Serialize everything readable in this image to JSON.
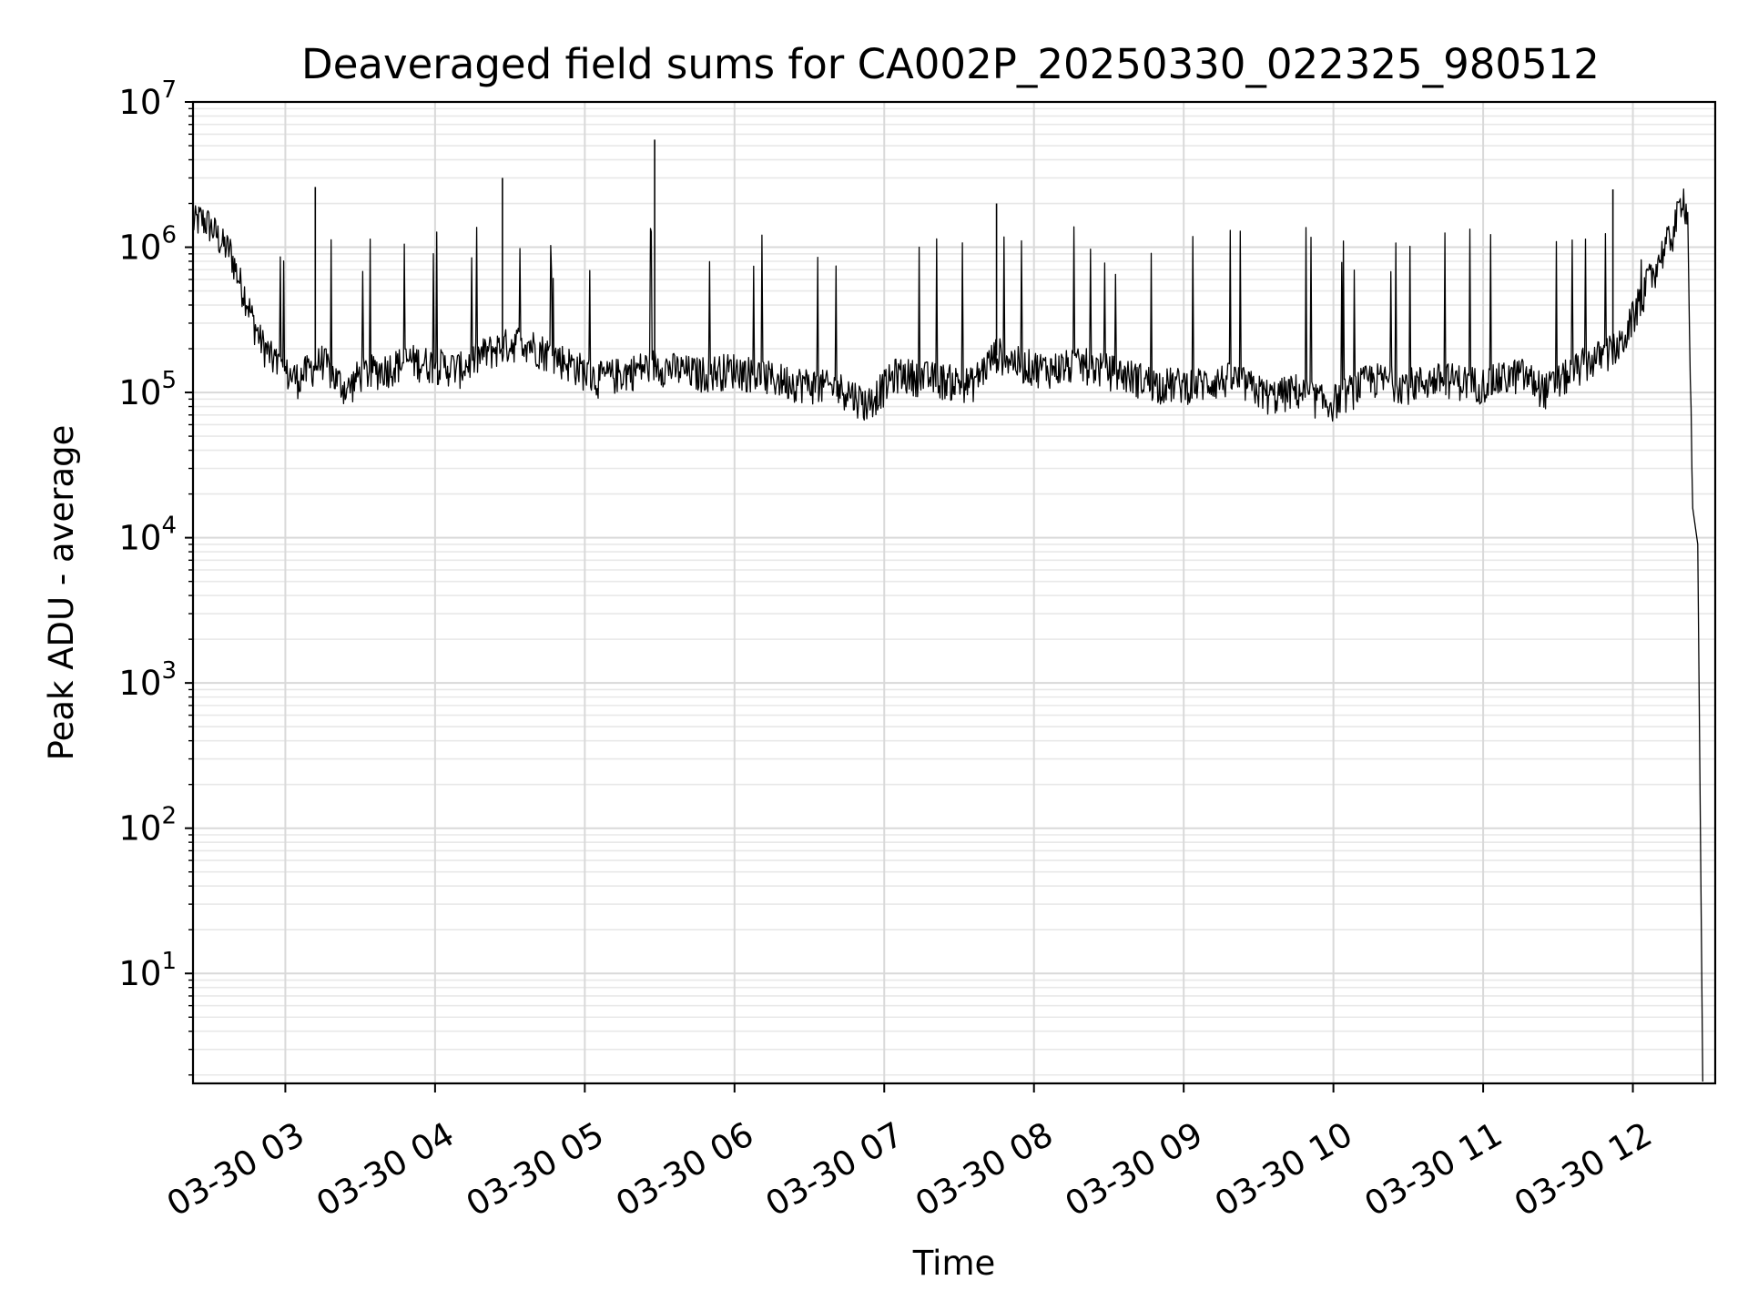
{
  "chart_data": {
    "type": "line",
    "title": "Deaveraged field sums for CA002P_20250330_022325_980512",
    "xlabel": "Time",
    "ylabel": "Peak ADU - average",
    "yscale": "log",
    "ylim": [
      1.75,
      10000000
    ],
    "xlim": [
      "2025-03-30 02:23",
      "2025-03-30 12:33"
    ],
    "grid": true,
    "line_color": "#000000",
    "x_ticks": [
      {
        "value": "2025-03-30 03:00",
        "label": "03-30 03"
      },
      {
        "value": "2025-03-30 04:00",
        "label": "03-30 04"
      },
      {
        "value": "2025-03-30 05:00",
        "label": "03-30 05"
      },
      {
        "value": "2025-03-30 06:00",
        "label": "03-30 06"
      },
      {
        "value": "2025-03-30 07:00",
        "label": "03-30 07"
      },
      {
        "value": "2025-03-30 08:00",
        "label": "03-30 08"
      },
      {
        "value": "2025-03-30 09:00",
        "label": "03-30 09"
      },
      {
        "value": "2025-03-30 10:00",
        "label": "03-30 10"
      },
      {
        "value": "2025-03-30 11:00",
        "label": "03-30 11"
      },
      {
        "value": "2025-03-30 12:00",
        "label": "03-30 12"
      }
    ],
    "y_ticks": [
      {
        "value": 10,
        "base": "10",
        "exp": "1"
      },
      {
        "value": 100,
        "base": "10",
        "exp": "2"
      },
      {
        "value": 1000,
        "base": "10",
        "exp": "3"
      },
      {
        "value": 10000,
        "base": "10",
        "exp": "4"
      },
      {
        "value": 100000,
        "base": "10",
        "exp": "5"
      },
      {
        "value": 1000000,
        "base": "10",
        "exp": "6"
      },
      {
        "value": 10000000,
        "base": "10",
        "exp": "7"
      }
    ],
    "series": [
      {
        "x": [
          "2025-03-30 02:23",
          "2025-03-30 02:26",
          "2025-03-30 02:29",
          "2025-03-30 02:32",
          "2025-03-30 02:35",
          "2025-03-30 02:38",
          "2025-03-30 02:41",
          "2025-03-30 02:44",
          "2025-03-30 02:47",
          "2025-03-30 02:50",
          "2025-03-30 02:55",
          "2025-03-30 03:00",
          "2025-03-30 03:05",
          "2025-03-30 03:10",
          "2025-03-30 03:15",
          "2025-03-30 03:20",
          "2025-03-30 03:25",
          "2025-03-30 03:30",
          "2025-03-30 03:40",
          "2025-03-30 03:50",
          "2025-03-30 04:00",
          "2025-03-30 04:10",
          "2025-03-30 04:20",
          "2025-03-30 04:27",
          "2025-03-30 04:35",
          "2025-03-30 04:45",
          "2025-03-30 04:55",
          "2025-03-30 05:05",
          "2025-03-30 05:15",
          "2025-03-30 05:28",
          "2025-03-30 05:35",
          "2025-03-30 05:45",
          "2025-03-30 06:00",
          "2025-03-30 06:15",
          "2025-03-30 06:30",
          "2025-03-30 06:45",
          "2025-03-30 06:53",
          "2025-03-30 07:05",
          "2025-03-30 07:20",
          "2025-03-30 07:35",
          "2025-03-30 07:45",
          "2025-03-30 07:55",
          "2025-03-30 08:05",
          "2025-03-30 08:20",
          "2025-03-30 08:35",
          "2025-03-30 08:50",
          "2025-03-30 09:05",
          "2025-03-30 09:20",
          "2025-03-30 09:35",
          "2025-03-30 09:45",
          "2025-03-30 09:58",
          "2025-03-30 10:15",
          "2025-03-30 10:30",
          "2025-03-30 10:45",
          "2025-03-30 11:00",
          "2025-03-30 11:15",
          "2025-03-30 11:25",
          "2025-03-30 11:40",
          "2025-03-30 11:55",
          "2025-03-30 12:05",
          "2025-03-30 12:12",
          "2025-03-30 12:16",
          "2025-03-30 12:18",
          "2025-03-30 12:20",
          "2025-03-30 12:22",
          "2025-03-30 12:24",
          "2025-03-30 12:26",
          "2025-03-30 12:27",
          "2025-03-30 12:28"
        ],
        "y": [
          1400000,
          1500000,
          1400000,
          1200000,
          1000000,
          900000,
          600000,
          450000,
          300000,
          220000,
          160000,
          130000,
          120000,
          140000,
          160000,
          120000,
          100000,
          130000,
          140000,
          160000,
          150000,
          140000,
          180000,
          200000,
          220000,
          180000,
          150000,
          120000,
          130000,
          150000,
          140000,
          130000,
          140000,
          120000,
          110000,
          100000,
          80000,
          130000,
          120000,
          110000,
          180000,
          150000,
          140000,
          150000,
          130000,
          110000,
          110000,
          120000,
          90000,
          100000,
          80000,
          120000,
          110000,
          120000,
          110000,
          130000,
          100000,
          150000,
          200000,
          500000,
          900000,
          1200000,
          1600000,
          2300000,
          1500000,
          12000,
          9000,
          120,
          1.8
        ],
        "spikes": [
          {
            "x": "2025-03-30 03:12",
            "y": 2600000
          },
          {
            "x": "2025-03-30 04:27",
            "y": 3000000
          },
          {
            "x": "2025-03-30 05:28",
            "y": 5500000
          },
          {
            "x": "2025-03-30 07:45",
            "y": 2000000
          },
          {
            "x": "2025-03-30 11:52",
            "y": 2500000
          }
        ]
      }
    ]
  }
}
